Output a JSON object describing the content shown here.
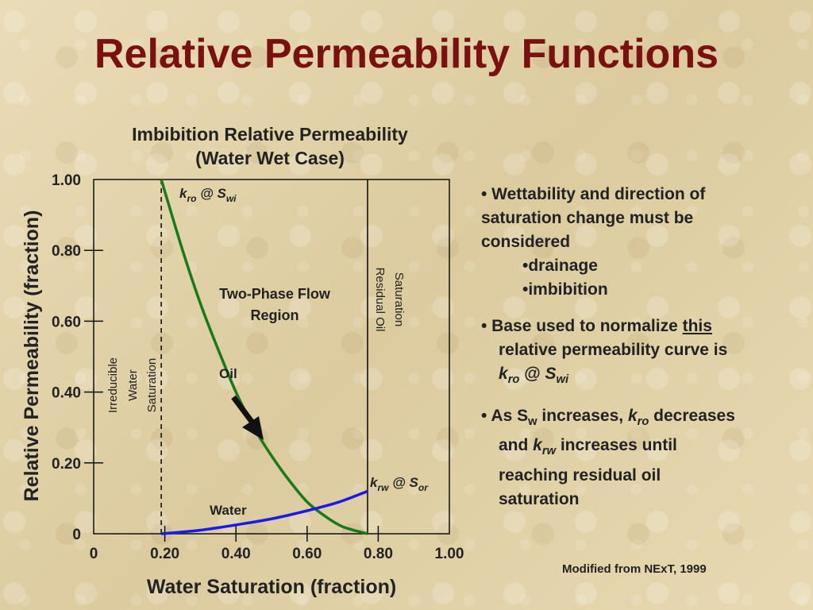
{
  "slide_title": "Relative Permeability Functions",
  "chart_title_line1": "Imbibition Relative Permeability",
  "chart_title_line2": "(Water Wet Case)",
  "chart_data": {
    "type": "line",
    "xlabel": "Water Saturation (fraction)",
    "ylabel": "Relative Permeability (fraction)",
    "xlim": [
      0,
      1.0
    ],
    "ylim": [
      0,
      1.0
    ],
    "x_ticks": [
      "0",
      "0.20",
      "0.40",
      "0.60",
      "0.80",
      "1.00"
    ],
    "y_ticks": [
      "0",
      "0.20",
      "0.40",
      "0.60",
      "0.80",
      "1.00"
    ],
    "grid": false,
    "series": [
      {
        "name": "Oil",
        "color": "#1a7a1a",
        "x": [
          0.19,
          0.25,
          0.3,
          0.35,
          0.4,
          0.45,
          0.5,
          0.55,
          0.6,
          0.65,
          0.7,
          0.77
        ],
        "y": [
          1.0,
          0.8,
          0.65,
          0.52,
          0.4,
          0.3,
          0.22,
          0.15,
          0.09,
          0.05,
          0.02,
          0.0
        ]
      },
      {
        "name": "Water",
        "color": "#1a1aee",
        "x": [
          0.19,
          0.25,
          0.3,
          0.35,
          0.4,
          0.45,
          0.5,
          0.55,
          0.6,
          0.65,
          0.7,
          0.77
        ],
        "y": [
          0.0,
          0.005,
          0.01,
          0.017,
          0.025,
          0.033,
          0.042,
          0.053,
          0.065,
          0.078,
          0.093,
          0.12
        ]
      }
    ],
    "vertical_lines": [
      {
        "x": 0.19,
        "style": "dashed"
      },
      {
        "x": 0.77,
        "style": "solid"
      }
    ],
    "annotations": {
      "kro_label": "kro @ Swi",
      "krw_label": "krw @ Sor",
      "region_line1": "Two-Phase Flow",
      "region_line2": "Region",
      "irreducible_line1": "Irreducible",
      "irreducible_line2": "Water",
      "irreducible_line3": "Saturation",
      "residual_line1": "Residual Oil",
      "residual_line2": "Saturation",
      "oil_label": "Oil",
      "water_label": "Water"
    }
  },
  "bullets": {
    "b1_line1": "• Wettability and direction of",
    "b1_line2": "saturation change must be",
    "b1_line3": "considered",
    "sub1": "•drainage",
    "sub2": "•imbibition",
    "b2_prefix": "• Base used to normalize ",
    "b2_underlined": "this",
    "b2_line2": "relative permeability curve is",
    "b3_text_a": "• As S",
    "b3_text_b": " increases, ",
    "b3_text_c": " decreases",
    "b3_line2a": "and ",
    "b3_line2b": " increases until",
    "b3_line3": "reaching residual oil",
    "b3_line4": "saturation"
  },
  "footnote": "Modified from NExT, 1999"
}
